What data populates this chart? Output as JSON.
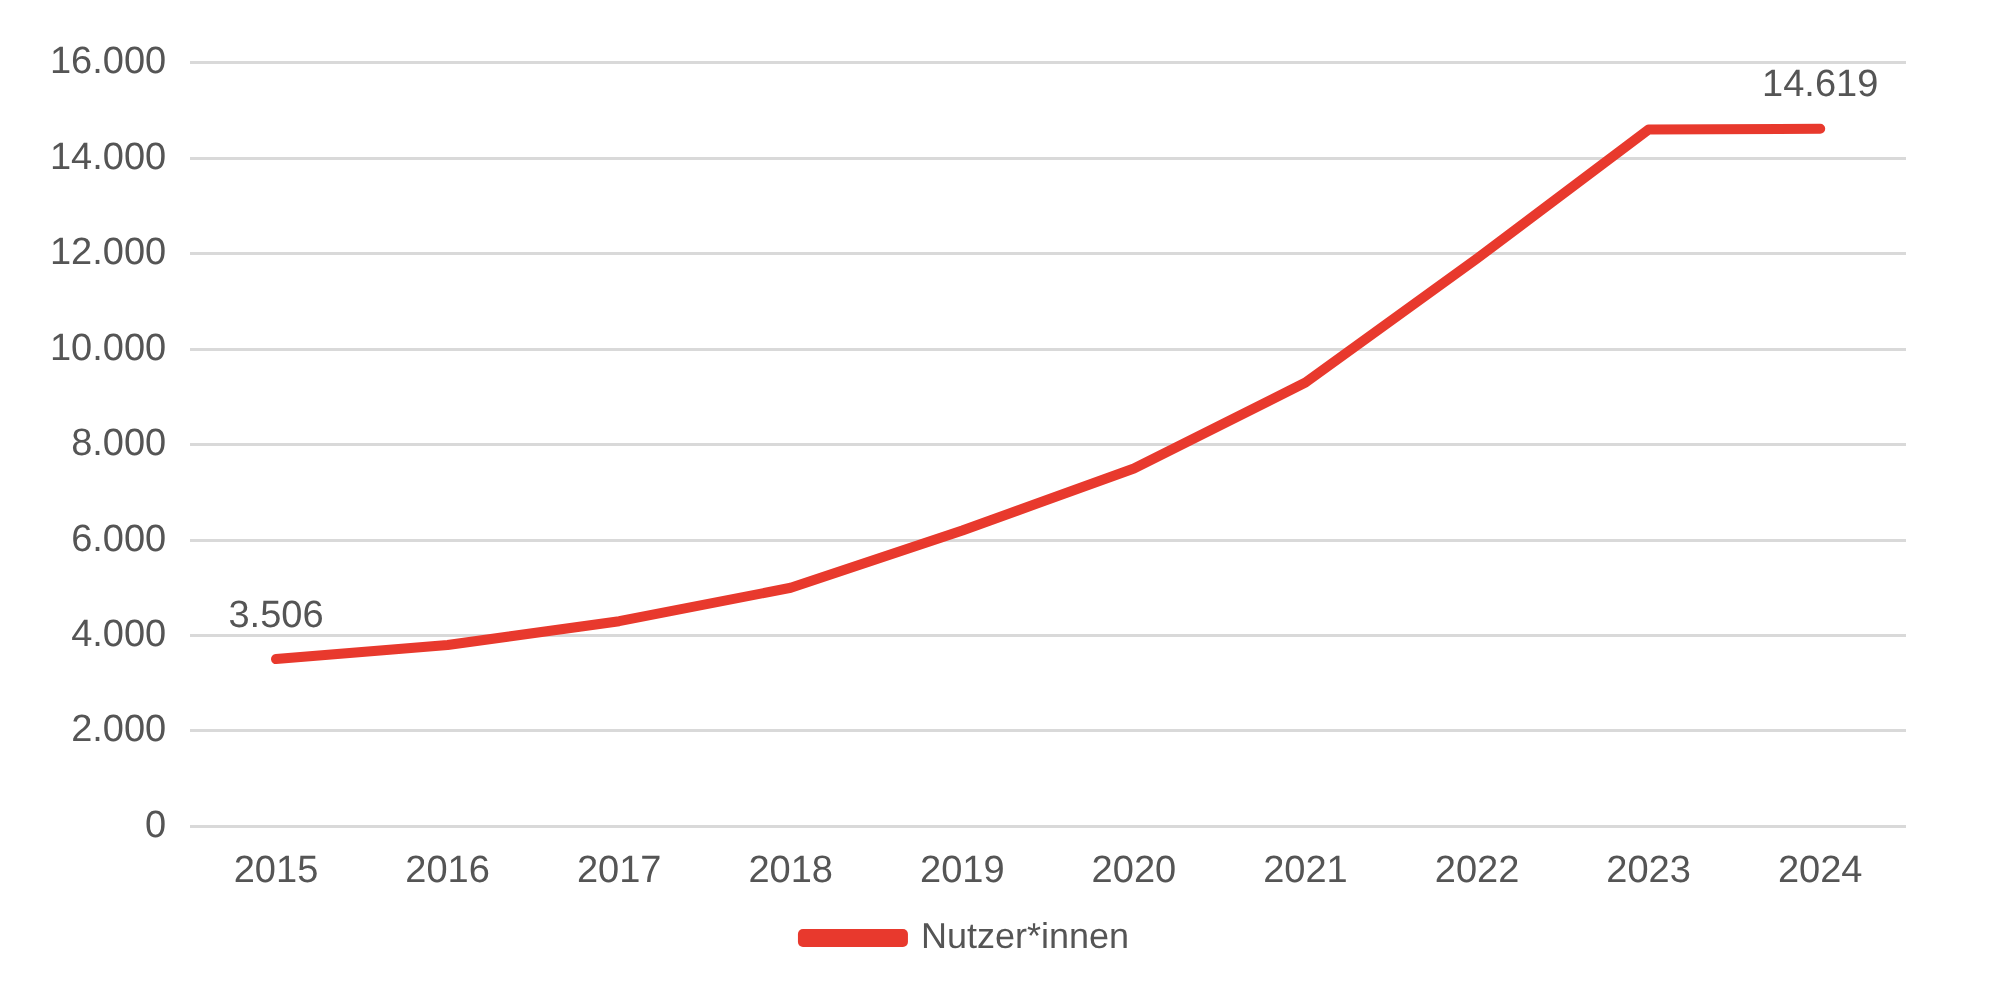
{
  "chart_data": {
    "type": "line",
    "categories": [
      "2015",
      "2016",
      "2017",
      "2018",
      "2019",
      "2020",
      "2021",
      "2022",
      "2023",
      "2024"
    ],
    "series": [
      {
        "name": "Nutzer*innen",
        "color": "#e8392d",
        "values": [
          3506,
          3800,
          4300,
          5000,
          6200,
          7500,
          9300,
          11900,
          14600,
          14619
        ],
        "value_labels": [
          "3.506",
          null,
          null,
          null,
          null,
          null,
          null,
          null,
          null,
          "14.619"
        ]
      }
    ],
    "ylim": [
      0,
      16000
    ],
    "yticks": [
      {
        "value": 0,
        "label": "0"
      },
      {
        "value": 2000,
        "label": "2.000"
      },
      {
        "value": 4000,
        "label": "4.000"
      },
      {
        "value": 6000,
        "label": "6.000"
      },
      {
        "value": 8000,
        "label": "8.000"
      },
      {
        "value": 10000,
        "label": "10.000"
      },
      {
        "value": 12000,
        "label": "12.000"
      },
      {
        "value": 14000,
        "label": "14.000"
      },
      {
        "value": 16000,
        "label": "16.000"
      }
    ],
    "grid": "y",
    "legend": "bottom",
    "marker": "none",
    "line_style": "solid"
  }
}
